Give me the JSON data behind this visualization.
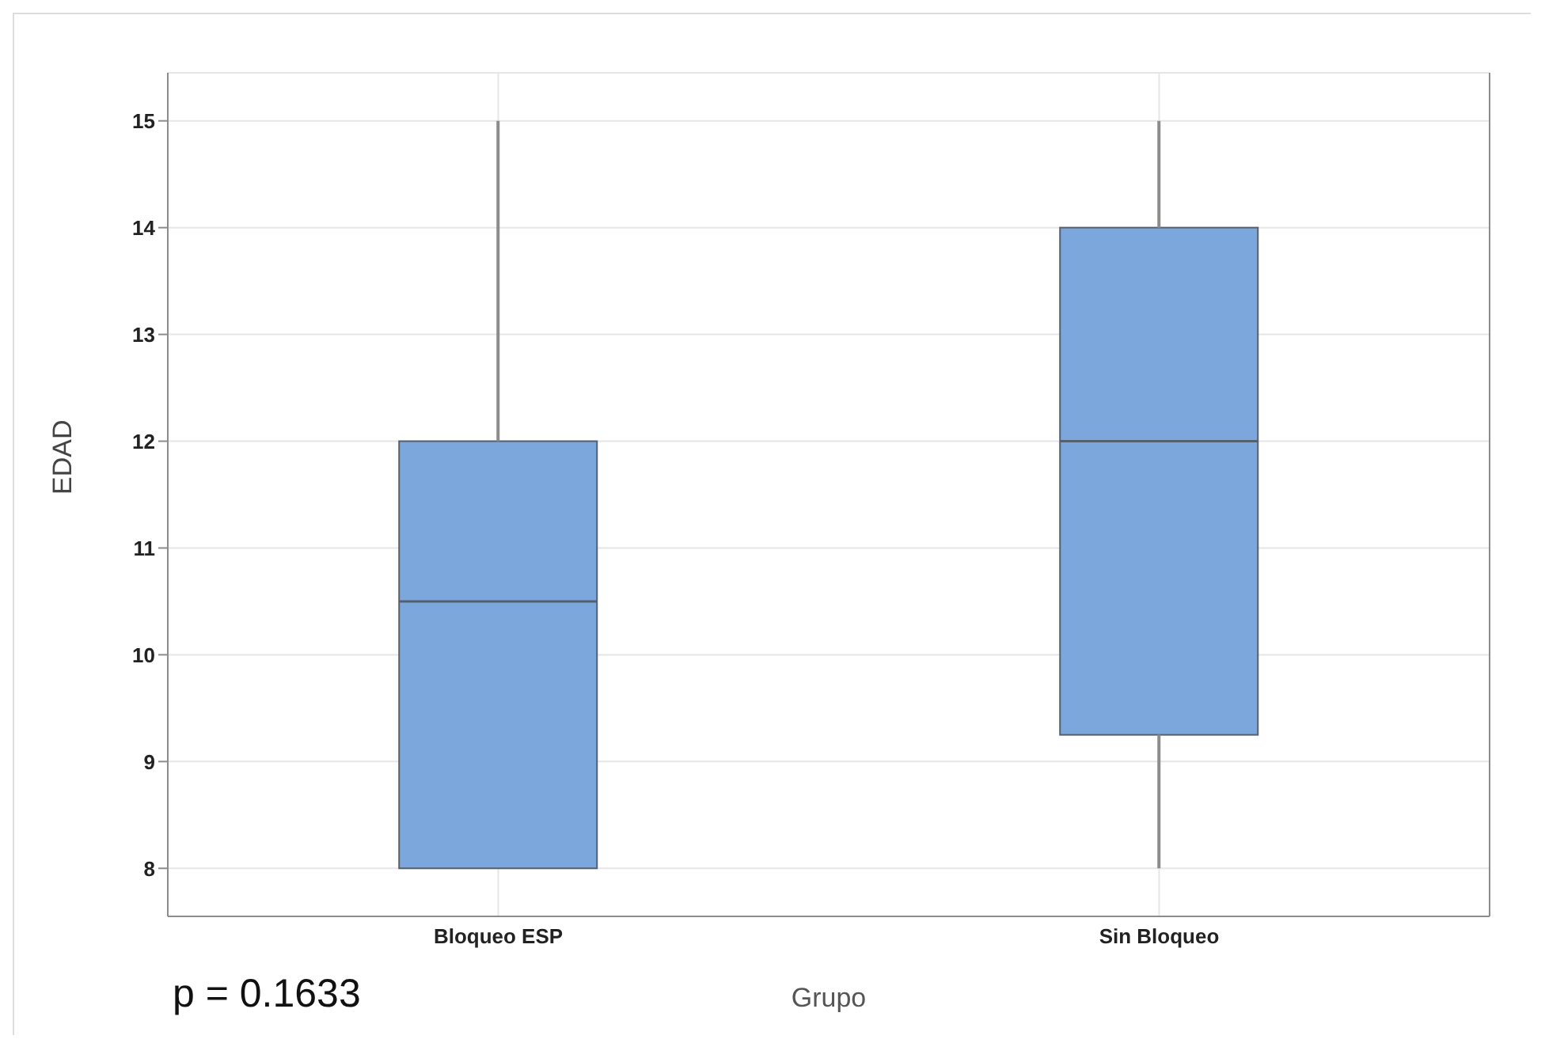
{
  "chart_data": {
    "type": "box",
    "xlabel": "Grupo",
    "ylabel": "EDAD",
    "categories": [
      "Bloqueo ESP",
      "Sin Bloqueo"
    ],
    "boxes": [
      {
        "low": 8,
        "q1": 8,
        "median": 10.5,
        "q3": 12,
        "high": 15
      },
      {
        "low": 8,
        "q1": 9.25,
        "median": 12,
        "q3": 14,
        "high": 15
      }
    ],
    "color": "#7ba7dc",
    "ylim": [
      7.55,
      15.45
    ],
    "yticks": [
      8,
      9,
      10,
      11,
      12,
      13,
      14,
      15
    ],
    "grid": true,
    "annotations": [
      "p = 0.1633"
    ]
  }
}
